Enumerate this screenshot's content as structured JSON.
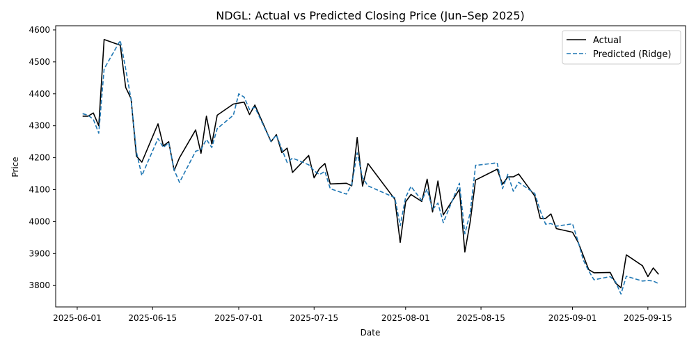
{
  "chart_data": {
    "type": "line",
    "title": "NDGL: Actual vs Predicted Closing Price (Jun–Sep 2025)",
    "xlabel": "Date",
    "ylabel": "Price",
    "xlim": [
      "2025-05-28",
      "2025-09-22"
    ],
    "ylim": [
      3733,
      4613
    ],
    "x_ticks": [
      "2025-06-01",
      "2025-06-15",
      "2025-07-01",
      "2025-07-15",
      "2025-08-01",
      "2025-08-15",
      "2025-09-01",
      "2025-09-15"
    ],
    "y_ticks": [
      3800,
      3900,
      4000,
      4100,
      4200,
      4300,
      4400,
      4500,
      4600
    ],
    "legend_position": "top-right",
    "grid": false,
    "series": [
      {
        "name": "Actual",
        "color": "#000000",
        "style": "solid",
        "points": [
          [
            "2025-06-02",
            4330
          ],
          [
            "2025-06-03",
            4330
          ],
          [
            "2025-06-04",
            4340
          ],
          [
            "2025-06-05",
            4300
          ],
          [
            "2025-06-06",
            4570
          ],
          [
            "2025-06-09",
            4552
          ],
          [
            "2025-06-10",
            4420
          ],
          [
            "2025-06-11",
            4385
          ],
          [
            "2025-06-12",
            4205
          ],
          [
            "2025-06-13",
            4186
          ],
          [
            "2025-06-16",
            4306
          ],
          [
            "2025-06-17",
            4237
          ],
          [
            "2025-06-18",
            4250
          ],
          [
            "2025-06-19",
            4160
          ],
          [
            "2025-06-20",
            4200
          ],
          [
            "2025-06-23",
            4287
          ],
          [
            "2025-06-24",
            4214
          ],
          [
            "2025-06-25",
            4330
          ],
          [
            "2025-06-26",
            4243
          ],
          [
            "2025-06-27",
            4333
          ],
          [
            "2025-06-30",
            4368
          ],
          [
            "2025-07-02",
            4374
          ],
          [
            "2025-07-03",
            4335
          ],
          [
            "2025-07-04",
            4365
          ],
          [
            "2025-07-07",
            4250
          ],
          [
            "2025-07-08",
            4272
          ],
          [
            "2025-07-09",
            4216
          ],
          [
            "2025-07-10",
            4230
          ],
          [
            "2025-07-11",
            4154
          ],
          [
            "2025-07-14",
            4207
          ],
          [
            "2025-07-15",
            4137
          ],
          [
            "2025-07-16",
            4166
          ],
          [
            "2025-07-17",
            4182
          ],
          [
            "2025-07-18",
            4118
          ],
          [
            "2025-07-21",
            4120
          ],
          [
            "2025-07-22",
            4112
          ],
          [
            "2025-07-23",
            4263
          ],
          [
            "2025-07-24",
            4111
          ],
          [
            "2025-07-25",
            4182
          ],
          [
            "2025-07-30",
            4070
          ],
          [
            "2025-07-31",
            3935
          ],
          [
            "2025-08-01",
            4062
          ],
          [
            "2025-08-02",
            4085
          ],
          [
            "2025-08-04",
            4063
          ],
          [
            "2025-08-05",
            4133
          ],
          [
            "2025-08-06",
            4030
          ],
          [
            "2025-08-07",
            4127
          ],
          [
            "2025-08-08",
            4021
          ],
          [
            "2025-08-11",
            4101
          ],
          [
            "2025-08-12",
            3905
          ],
          [
            "2025-08-13",
            4000
          ],
          [
            "2025-08-14",
            4130
          ],
          [
            "2025-08-18",
            4164
          ],
          [
            "2025-08-19",
            4117
          ],
          [
            "2025-08-20",
            4140
          ],
          [
            "2025-08-21",
            4140
          ],
          [
            "2025-08-22",
            4149
          ],
          [
            "2025-08-25",
            4080
          ],
          [
            "2025-08-26",
            4010
          ],
          [
            "2025-08-27",
            4010
          ],
          [
            "2025-08-28",
            4024
          ],
          [
            "2025-08-29",
            3978
          ],
          [
            "2025-09-01",
            3967
          ],
          [
            "2025-09-02",
            3937
          ],
          [
            "2025-09-03",
            3894
          ],
          [
            "2025-09-04",
            3850
          ],
          [
            "2025-09-05",
            3840
          ],
          [
            "2025-09-08",
            3841
          ],
          [
            "2025-09-09",
            3808
          ],
          [
            "2025-09-10",
            3793
          ],
          [
            "2025-09-11",
            3896
          ],
          [
            "2025-09-14",
            3862
          ],
          [
            "2025-09-15",
            3828
          ],
          [
            "2025-09-16",
            3855
          ],
          [
            "2025-09-17",
            3835
          ]
        ]
      },
      {
        "name": "Predicted (Ridge)",
        "color": "#1f77b4",
        "style": "dashed",
        "points": [
          [
            "2025-06-02",
            4338
          ],
          [
            "2025-06-03",
            4333
          ],
          [
            "2025-06-04",
            4320
          ],
          [
            "2025-06-05",
            4277
          ],
          [
            "2025-06-06",
            4478
          ],
          [
            "2025-06-09",
            4567
          ],
          [
            "2025-06-10",
            4478
          ],
          [
            "2025-06-11",
            4383
          ],
          [
            "2025-06-12",
            4218
          ],
          [
            "2025-06-13",
            4144
          ],
          [
            "2025-06-16",
            4260
          ],
          [
            "2025-06-17",
            4232
          ],
          [
            "2025-06-18",
            4247
          ],
          [
            "2025-06-19",
            4162
          ],
          [
            "2025-06-20",
            4123
          ],
          [
            "2025-06-23",
            4220
          ],
          [
            "2025-06-24",
            4226
          ],
          [
            "2025-06-25",
            4257
          ],
          [
            "2025-06-26",
            4232
          ],
          [
            "2025-06-27",
            4291
          ],
          [
            "2025-06-30",
            4333
          ],
          [
            "2025-07-01",
            4400
          ],
          [
            "2025-07-02",
            4390
          ],
          [
            "2025-07-03",
            4351
          ],
          [
            "2025-07-04",
            4358
          ],
          [
            "2025-07-07",
            4251
          ],
          [
            "2025-07-08",
            4271
          ],
          [
            "2025-07-09",
            4227
          ],
          [
            "2025-07-10",
            4185
          ],
          [
            "2025-07-11",
            4199
          ],
          [
            "2025-07-14",
            4178
          ],
          [
            "2025-07-15",
            4159
          ],
          [
            "2025-07-16",
            4147
          ],
          [
            "2025-07-17",
            4157
          ],
          [
            "2025-07-18",
            4103
          ],
          [
            "2025-07-21",
            4086
          ],
          [
            "2025-07-22",
            4117
          ],
          [
            "2025-07-23",
            4215
          ],
          [
            "2025-07-24",
            4138
          ],
          [
            "2025-07-25",
            4112
          ],
          [
            "2025-07-30",
            4075
          ],
          [
            "2025-07-31",
            3987
          ],
          [
            "2025-08-01",
            4076
          ],
          [
            "2025-08-02",
            4110
          ],
          [
            "2025-08-04",
            4066
          ],
          [
            "2025-08-05",
            4102
          ],
          [
            "2025-08-06",
            4038
          ],
          [
            "2025-08-07",
            4058
          ],
          [
            "2025-08-08",
            3997
          ],
          [
            "2025-08-11",
            4120
          ],
          [
            "2025-08-12",
            3962
          ],
          [
            "2025-08-13",
            4028
          ],
          [
            "2025-08-14",
            4176
          ],
          [
            "2025-08-18",
            4184
          ],
          [
            "2025-08-19",
            4103
          ],
          [
            "2025-08-20",
            4148
          ],
          [
            "2025-08-21",
            4095
          ],
          [
            "2025-08-22",
            4123
          ],
          [
            "2025-08-25",
            4088
          ],
          [
            "2025-08-26",
            4034
          ],
          [
            "2025-08-27",
            3992
          ],
          [
            "2025-08-28",
            3994
          ],
          [
            "2025-08-29",
            3986
          ],
          [
            "2025-09-01",
            3993
          ],
          [
            "2025-09-02",
            3940
          ],
          [
            "2025-09-03",
            3880
          ],
          [
            "2025-09-04",
            3846
          ],
          [
            "2025-09-05",
            3818
          ],
          [
            "2025-09-08",
            3828
          ],
          [
            "2025-09-09",
            3812
          ],
          [
            "2025-09-10",
            3773
          ],
          [
            "2025-09-11",
            3829
          ],
          [
            "2025-09-14",
            3814
          ],
          [
            "2025-09-15",
            3816
          ],
          [
            "2025-09-16",
            3814
          ],
          [
            "2025-09-17",
            3806
          ]
        ]
      }
    ]
  }
}
